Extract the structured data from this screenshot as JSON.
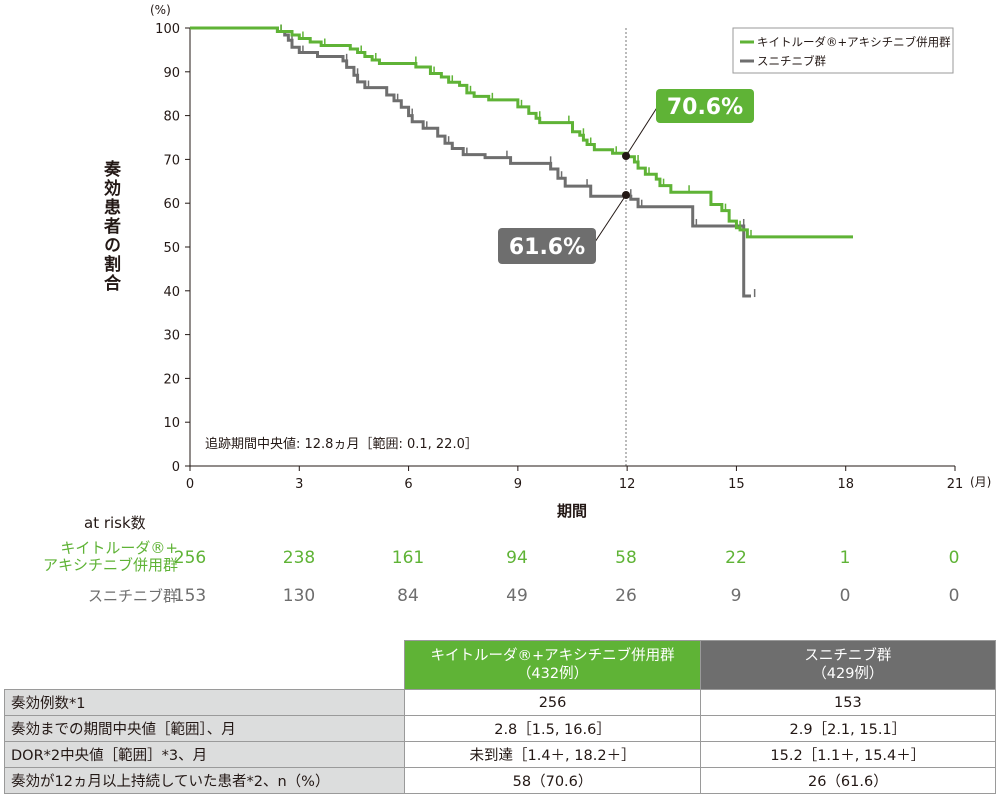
{
  "chart_data": {
    "type": "line",
    "subtype": "kaplan-meier step",
    "ylabel": "奏効患者の割合",
    "yunit": "(%)",
    "xlabel": "期間",
    "xunit": "(月)",
    "xlim": [
      0,
      21
    ],
    "ylim": [
      0,
      100
    ],
    "xticks": [
      "0",
      "3",
      "6",
      "9",
      "12",
      "15",
      "18",
      "21"
    ],
    "yticks": [
      "0",
      "10",
      "20",
      "30",
      "40",
      "50",
      "60",
      "70",
      "80",
      "90",
      "100"
    ],
    "annotation": "追跡期間中央値: 12.8ヵ月［範囲: 0.1, 22.0］",
    "reference_line_x": 12,
    "legend_position": "top-right",
    "series": [
      {
        "name": "キイトルーダ®+アキシチニブ併用群",
        "color": "#5fb336",
        "highlight": {
          "x": 12,
          "y": 70.6,
          "label": "70.6%"
        },
        "points": [
          [
            0,
            100
          ],
          [
            1.6,
            100
          ],
          [
            2.4,
            99.2
          ],
          [
            2.8,
            98.4
          ],
          [
            3.0,
            97.6
          ],
          [
            3.3,
            96.8
          ],
          [
            3.6,
            96.0
          ],
          [
            4.4,
            95.2
          ],
          [
            4.6,
            94.4
          ],
          [
            4.8,
            93.5
          ],
          [
            5.0,
            92.7
          ],
          [
            5.2,
            91.9
          ],
          [
            6.1,
            91.9
          ],
          [
            6.2,
            91.1
          ],
          [
            6.6,
            89.6
          ],
          [
            6.9,
            88.8
          ],
          [
            7.1,
            87.6
          ],
          [
            7.4,
            86.9
          ],
          [
            7.6,
            85.2
          ],
          [
            7.8,
            84.4
          ],
          [
            8.2,
            83.6
          ],
          [
            8.9,
            83.6
          ],
          [
            9.0,
            82.0
          ],
          [
            9.3,
            80.5
          ],
          [
            9.5,
            79.4
          ],
          [
            9.6,
            78.4
          ],
          [
            10.3,
            78.4
          ],
          [
            10.5,
            76.3
          ],
          [
            10.7,
            75.5
          ],
          [
            10.8,
            74.4
          ],
          [
            10.9,
            73.4
          ],
          [
            11.1,
            72.2
          ],
          [
            11.6,
            71.4
          ],
          [
            12.0,
            70.6
          ],
          [
            12.2,
            69.4
          ],
          [
            12.3,
            68.0
          ],
          [
            12.5,
            66.6
          ],
          [
            12.8,
            65.5
          ],
          [
            12.9,
            64.0
          ],
          [
            13.2,
            62.5
          ],
          [
            13.6,
            62.5
          ],
          [
            14.3,
            59.7
          ],
          [
            14.6,
            58.3
          ],
          [
            14.8,
            55.9
          ],
          [
            15.0,
            54.4
          ],
          [
            15.1,
            53.9
          ],
          [
            15.3,
            52.3
          ],
          [
            18.2,
            52.3
          ]
        ]
      },
      {
        "name": "スニチニブ群",
        "color": "#6e6e6e",
        "highlight": {
          "x": 12,
          "y": 61.6,
          "label": "61.6%"
        },
        "points": [
          [
            0,
            100
          ],
          [
            1.6,
            100
          ],
          [
            2.4,
            99.2
          ],
          [
            2.6,
            98.4
          ],
          [
            2.7,
            97.2
          ],
          [
            2.8,
            95.6
          ],
          [
            3.0,
            94.4
          ],
          [
            3.5,
            93.5
          ],
          [
            4.2,
            92.5
          ],
          [
            4.3,
            91.0
          ],
          [
            4.5,
            89.2
          ],
          [
            4.6,
            87.7
          ],
          [
            4.8,
            86.4
          ],
          [
            5.4,
            84.7
          ],
          [
            5.6,
            83.4
          ],
          [
            5.8,
            81.9
          ],
          [
            6.0,
            80.0
          ],
          [
            6.1,
            78.6
          ],
          [
            6.4,
            77.1
          ],
          [
            6.8,
            75.3
          ],
          [
            7.0,
            73.7
          ],
          [
            7.2,
            72.5
          ],
          [
            7.5,
            71.1
          ],
          [
            8.1,
            70.4
          ],
          [
            8.6,
            70.4
          ],
          [
            8.8,
            69.1
          ],
          [
            9.8,
            69.1
          ],
          [
            9.9,
            67.8
          ],
          [
            10.1,
            65.7
          ],
          [
            10.3,
            63.9
          ],
          [
            10.8,
            63.9
          ],
          [
            11.0,
            61.6
          ],
          [
            12.0,
            61.6
          ],
          [
            12.1,
            60.9
          ],
          [
            12.3,
            59.2
          ],
          [
            13.0,
            59.2
          ],
          [
            13.8,
            54.8
          ],
          [
            14.9,
            54.8
          ],
          [
            15.1,
            54.8
          ],
          [
            15.2,
            38.8
          ],
          [
            15.4,
            38.8
          ]
        ]
      }
    ]
  },
  "at_risk": {
    "title": "at risk数",
    "groups": [
      {
        "label_lines": [
          "キイトルーダ®+",
          "アキシチニブ併用群"
        ],
        "color": "#5fb336",
        "values": [
          "256",
          "238",
          "161",
          "94",
          "58",
          "22",
          "1",
          "0"
        ]
      },
      {
        "label_lines": [
          "スニチニブ群"
        ],
        "color": "#6e6e6e",
        "values": [
          "153",
          "130",
          "84",
          "49",
          "26",
          "9",
          "0",
          "0"
        ]
      }
    ]
  },
  "table": {
    "headers": [
      {
        "line1": "キイトルーダ®+アキシチニブ併用群",
        "line2": "（432例）"
      },
      {
        "line1": "スニチニブ群",
        "line2": "（429例）"
      }
    ],
    "rows": [
      {
        "label": "奏効例数*1",
        "a": "256",
        "b": "153"
      },
      {
        "label": "奏効までの期間中央値［範囲］、月",
        "a": "2.8［1.5, 16.6］",
        "b": "2.9［2.1, 15.1］"
      },
      {
        "label": "DOR*2中央値［範囲］*3、月",
        "a": "未到達［1.4＋, 18.2＋］",
        "b": "15.2［1.1＋, 15.4＋］"
      },
      {
        "label": "奏効が12ヵ月以上持続していた患者*2、n（%）",
        "a": "58（70.6）",
        "b": "26（61.6）"
      }
    ]
  }
}
